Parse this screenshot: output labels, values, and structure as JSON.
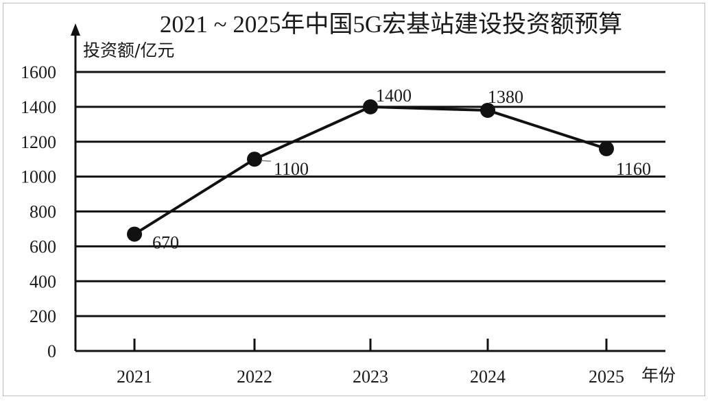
{
  "chart_data": {
    "type": "line",
    "title": "2021 ~ 2025年中国5G宏基站建设投资额预算",
    "ylabel": "投资额/亿元",
    "xlabel": "年份",
    "categories": [
      "2021",
      "2022",
      "2023",
      "2024",
      "2025"
    ],
    "values": [
      670,
      1100,
      1400,
      1380,
      1160
    ],
    "data_labels": [
      "670",
      "1100",
      "1400",
      "1380",
      "1160"
    ],
    "yticks": [
      "0",
      "200",
      "400",
      "600",
      "800",
      "1000",
      "1200",
      "1400",
      "1600"
    ],
    "ylim": [
      0,
      1600
    ],
    "grid": true,
    "legend": "none",
    "colors": {
      "line": "#111111",
      "grid": "#111111",
      "text": "#1a1a1a"
    }
  }
}
